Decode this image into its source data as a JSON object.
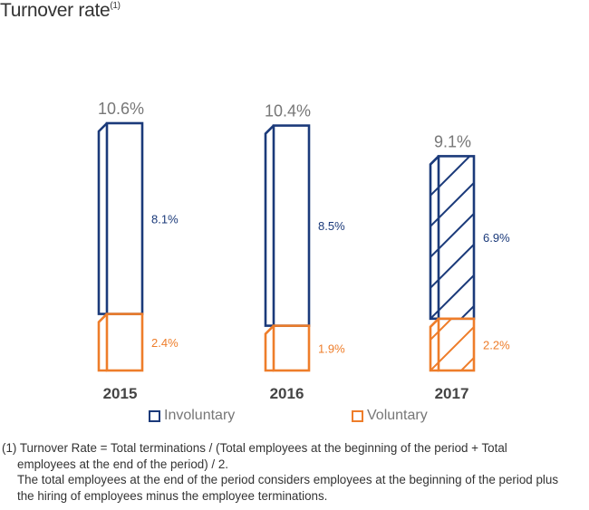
{
  "title": "Turnover rate",
  "title_sup": "(1)",
  "colors": {
    "involuntary": "#1b3a7a",
    "voluntary": "#ee7d2a",
    "total_label": "#777777",
    "year_label": "#444444"
  },
  "chart_data": {
    "type": "bar",
    "stacked": true,
    "title": "Turnover rate(1)",
    "categories": [
      "2015",
      "2016",
      "2017"
    ],
    "series": [
      {
        "name": "Voluntary",
        "values": [
          2.4,
          1.9,
          2.2
        ],
        "labels": [
          "2.4%",
          "1.9%",
          "2.2%"
        ]
      },
      {
        "name": "Involuntary",
        "values": [
          8.1,
          8.5,
          6.9
        ],
        "labels": [
          "8.1%",
          "8.5%",
          "6.9%"
        ]
      }
    ],
    "totals": [
      10.6,
      10.4,
      9.1
    ],
    "total_labels": [
      "10.6%",
      "10.4%",
      "9.1%"
    ],
    "hatched": [
      false,
      false,
      true
    ],
    "ylim": [
      0,
      11
    ],
    "xlabel": "",
    "ylabel": ""
  },
  "legend": {
    "involuntary": "Involuntary",
    "voluntary": "Voluntary"
  },
  "notes": {
    "line1": "(1) Turnover Rate = Total terminations / (Total employees at the beginning of the period + Total",
    "line2": "employees at the end of the period) / 2.",
    "line3": "The total employees at the end of the period considers employees at the beginning of the period plus",
    "line4": "the hiring of employees minus the employee terminations."
  }
}
